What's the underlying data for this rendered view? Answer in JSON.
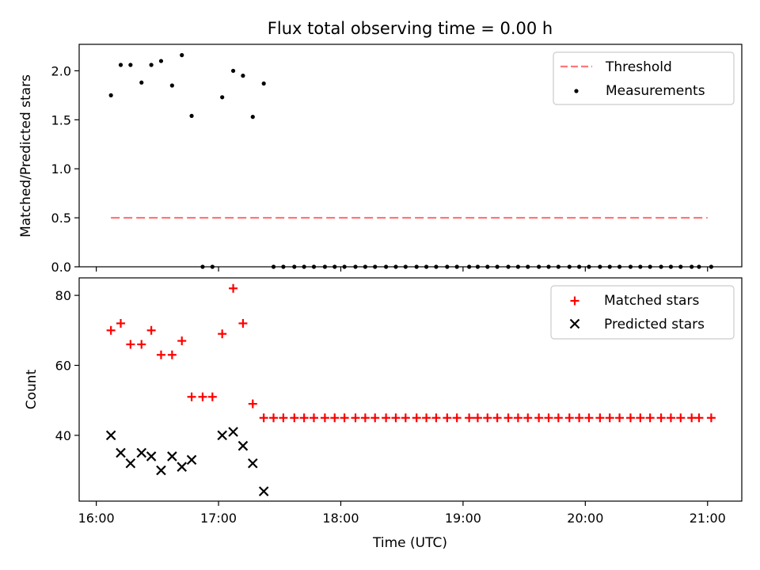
{
  "chart_data": [
    {
      "type": "scatter",
      "title": "Flux total observing time = 0.00 h",
      "xlabel": "",
      "ylabel": "Matched/Predicted stars",
      "xlim": [
        15.86,
        21.28
      ],
      "ylim": [
        0,
        2.27
      ],
      "yticks": [
        0.0,
        0.5,
        1.0,
        1.5,
        2.0
      ],
      "ytick_labels": [
        "0.0",
        "0.5",
        "1.0",
        "1.5",
        "2.0"
      ],
      "threshold": {
        "name": "Threshold",
        "value": 0.5,
        "x": [
          16.12,
          21.0
        ],
        "color": "#ff7777"
      },
      "series": [
        {
          "name": "Measurements",
          "color": "#000000",
          "x": [
            16.12,
            16.2,
            16.28,
            16.37,
            16.45,
            16.53,
            16.62,
            16.7,
            16.78,
            16.87,
            16.95,
            17.03,
            17.12,
            17.2,
            17.28,
            17.37,
            17.45,
            17.53,
            17.62,
            17.7,
            17.78,
            17.87,
            17.95,
            18.03,
            18.12,
            18.2,
            18.28,
            18.37,
            18.45,
            18.53,
            18.62,
            18.7,
            18.78,
            18.87,
            18.95,
            19.05,
            19.12,
            19.2,
            19.28,
            19.37,
            19.45,
            19.53,
            19.62,
            19.7,
            19.78,
            19.87,
            19.95,
            20.03,
            20.12,
            20.2,
            20.28,
            20.37,
            20.45,
            20.53,
            20.62,
            20.7,
            20.78,
            20.87,
            20.93,
            21.03
          ],
          "y": [
            1.75,
            2.06,
            2.06,
            1.88,
            2.06,
            2.1,
            1.85,
            2.16,
            1.54,
            0,
            0,
            1.73,
            2.0,
            1.95,
            1.53,
            1.87,
            0,
            0,
            0,
            0,
            0,
            0,
            0,
            0,
            0,
            0,
            0,
            0,
            0,
            0,
            0,
            0,
            0,
            0,
            0,
            0,
            0,
            0,
            0,
            0,
            0,
            0,
            0,
            0,
            0,
            0,
            0,
            0,
            0,
            0,
            0,
            0,
            0,
            0,
            0,
            0,
            0,
            0,
            0,
            0
          ]
        }
      ]
    },
    {
      "type": "scatter",
      "title": "",
      "xlabel": "Time (UTC)",
      "ylabel": "Count",
      "xlim": [
        15.86,
        21.28
      ],
      "ylim": [
        21.2,
        85.0
      ],
      "yticks": [
        40,
        60,
        80
      ],
      "ytick_labels": [
        "40",
        "60",
        "80"
      ],
      "xticks": [
        16,
        17,
        18,
        19,
        20,
        21
      ],
      "xtick_labels": [
        "16:00",
        "17:00",
        "18:00",
        "19:00",
        "20:00",
        "21:00"
      ],
      "series": [
        {
          "name": "Matched stars",
          "color": "#ff0000",
          "marker": "plus",
          "x": [
            16.12,
            16.2,
            16.28,
            16.37,
            16.45,
            16.53,
            16.62,
            16.7,
            16.78,
            16.87,
            16.95,
            17.03,
            17.12,
            17.2,
            17.28,
            17.37,
            17.45,
            17.53,
            17.62,
            17.7,
            17.78,
            17.87,
            17.95,
            18.03,
            18.12,
            18.2,
            18.28,
            18.37,
            18.45,
            18.53,
            18.62,
            18.7,
            18.78,
            18.87,
            18.95,
            19.05,
            19.12,
            19.2,
            19.28,
            19.37,
            19.45,
            19.53,
            19.62,
            19.7,
            19.78,
            19.87,
            19.95,
            20.03,
            20.12,
            20.2,
            20.28,
            20.37,
            20.45,
            20.53,
            20.62,
            20.7,
            20.78,
            20.87,
            20.93,
            21.03
          ],
          "y": [
            70,
            72,
            66,
            66,
            70,
            63,
            63,
            67,
            51,
            51,
            51,
            69,
            82,
            72,
            49,
            45,
            45,
            45,
            45,
            45,
            45,
            45,
            45,
            45,
            45,
            45,
            45,
            45,
            45,
            45,
            45,
            45,
            45,
            45,
            45,
            45,
            45,
            45,
            45,
            45,
            45,
            45,
            45,
            45,
            45,
            45,
            45,
            45,
            45,
            45,
            45,
            45,
            45,
            45,
            45,
            45,
            45,
            45,
            45,
            45
          ]
        },
        {
          "name": "Predicted stars",
          "color": "#000000",
          "marker": "x",
          "x": [
            16.12,
            16.2,
            16.28,
            16.37,
            16.45,
            16.53,
            16.62,
            16.7,
            16.78,
            17.03,
            17.12,
            17.2,
            17.28,
            17.37
          ],
          "y": [
            40,
            35,
            32,
            35,
            34,
            30,
            34,
            31,
            33,
            40,
            41,
            37,
            32,
            24
          ]
        }
      ]
    }
  ]
}
